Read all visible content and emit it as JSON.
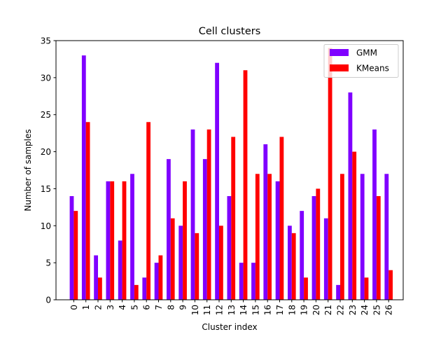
{
  "chart_data": {
    "type": "bar",
    "title": "Cell clusters",
    "xlabel": "Cluster index",
    "ylabel": "Number of samples",
    "categories": [
      "0",
      "1",
      "2",
      "3",
      "4",
      "5",
      "6",
      "7",
      "8",
      "9",
      "10",
      "11",
      "12",
      "13",
      "14",
      "15",
      "16",
      "17",
      "18",
      "19",
      "20",
      "21",
      "22",
      "23",
      "24",
      "25",
      "26"
    ],
    "series": [
      {
        "name": "GMM",
        "color": "#7f00ff",
        "values": [
          14,
          33,
          6,
          16,
          8,
          17,
          3,
          5,
          19,
          10,
          23,
          19,
          32,
          14,
          5,
          5,
          21,
          16,
          10,
          12,
          14,
          11,
          2,
          28,
          17,
          23,
          17
        ]
      },
      {
        "name": "KMeans",
        "color": "#ff0000",
        "values": [
          12,
          24,
          3,
          16,
          16,
          2,
          24,
          6,
          11,
          16,
          9,
          23,
          10,
          22,
          31,
          17,
          17,
          22,
          9,
          3,
          15,
          34,
          17,
          20,
          3,
          14,
          4
        ]
      }
    ],
    "ylim": [
      0,
      35
    ],
    "yticks": [
      0,
      5,
      10,
      15,
      20,
      25,
      30,
      35
    ],
    "legend_position": "top-right",
    "grid": false
  }
}
